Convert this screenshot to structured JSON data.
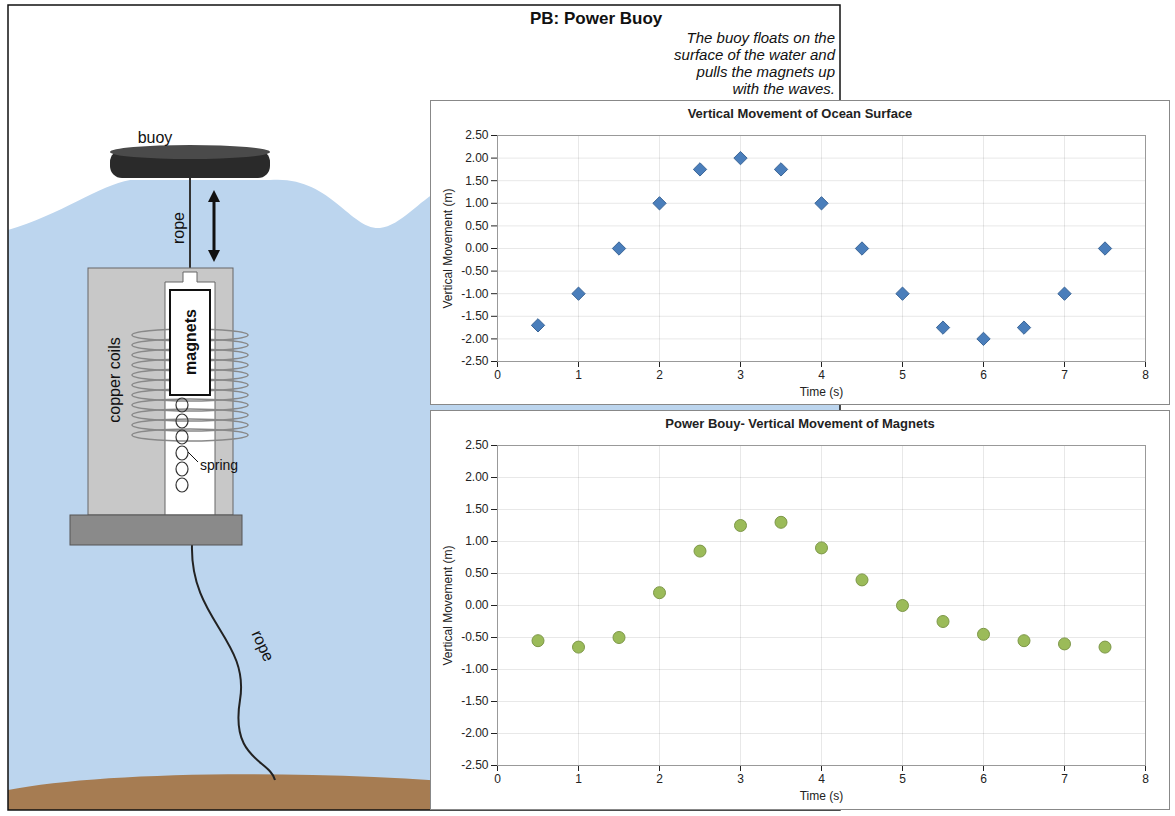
{
  "diagram": {
    "title": "PB: Power Buoy",
    "caption": "The buoy floats on the surface of the water and pulls the magnets up with the waves.",
    "labels": [
      "buoy",
      "rope",
      "copper coils",
      "magnets",
      "spring",
      "rope"
    ]
  },
  "chart_data": [
    {
      "type": "scatter",
      "title": "Vertical Movement of Ocean Surface",
      "x_label": "Time (s)",
      "y_label": "Vertical Movement (m)",
      "x": [
        0.5,
        1,
        1.5,
        2,
        2.5,
        3,
        3.5,
        4,
        4.5,
        5,
        5.5,
        6,
        6.5,
        7,
        7.5
      ],
      "series": [
        {
          "color": "#4a7ebb",
          "marker": "diamond",
          "values": [
            -1.7,
            -1,
            0,
            1,
            1.75,
            2,
            1.75,
            1,
            0,
            -1,
            -1.75,
            -2,
            -1.75,
            -1,
            0
          ]
        }
      ],
      "xlim": [
        0,
        8
      ],
      "xticks": [
        0,
        1,
        2,
        3,
        4,
        5,
        6,
        7,
        8
      ],
      "ylim": [
        -2.5,
        2.5
      ],
      "yticks": [
        {
          "value": -2.5,
          "label": "-2.50"
        },
        {
          "value": -2,
          "label": "-2.00"
        },
        {
          "value": -1.5,
          "label": "-1.50"
        },
        {
          "value": -1,
          "label": "-1.00"
        },
        {
          "value": -0.5,
          "label": "-0.50"
        },
        {
          "value": 0,
          "label": "0.00"
        },
        {
          "value": 0.5,
          "label": "0.50"
        },
        {
          "value": 1,
          "label": "1.00"
        },
        {
          "value": 1.5,
          "label": "1.50"
        },
        {
          "value": 2,
          "label": "2.00"
        },
        {
          "value": 2.5,
          "label": "2.50"
        }
      ],
      "grid": true
    },
    {
      "type": "scatter",
      "title": "Power Bouy- Vertical Movement of Magnets",
      "x_label": "Time (s)",
      "y_label": "Vertical Movement (m)",
      "x": [
        0.5,
        1,
        1.5,
        2,
        2.5,
        3,
        3.5,
        4,
        4.5,
        5,
        5.5,
        6,
        6.5,
        7,
        7.5
      ],
      "series": [
        {
          "color": "#9bbb59",
          "marker": "circle",
          "values": [
            -0.55,
            -0.65,
            -0.5,
            0.2,
            0.85,
            1.25,
            1.3,
            0.9,
            0.4,
            0,
            -0.25,
            -0.45,
            -0.55,
            -0.6,
            -0.65
          ]
        }
      ],
      "xlim": [
        0,
        8
      ],
      "xticks": [
        0,
        1,
        2,
        3,
        4,
        5,
        6,
        7,
        8
      ],
      "ylim": [
        -2.5,
        2.5
      ],
      "yticks": [
        {
          "value": -2.5,
          "label": "-2.50"
        },
        {
          "value": -2,
          "label": "-2.00"
        },
        {
          "value": -1.5,
          "label": "-1.50"
        },
        {
          "value": -1,
          "label": "-1.00"
        },
        {
          "value": -0.5,
          "label": "-0.50"
        },
        {
          "value": 0,
          "label": "0.00"
        },
        {
          "value": 0.5,
          "label": "0.50"
        },
        {
          "value": 1,
          "label": "1.00"
        },
        {
          "value": 1.5,
          "label": "1.50"
        },
        {
          "value": 2,
          "label": "2.00"
        },
        {
          "value": 2.5,
          "label": "2.50"
        }
      ],
      "grid": true
    }
  ]
}
